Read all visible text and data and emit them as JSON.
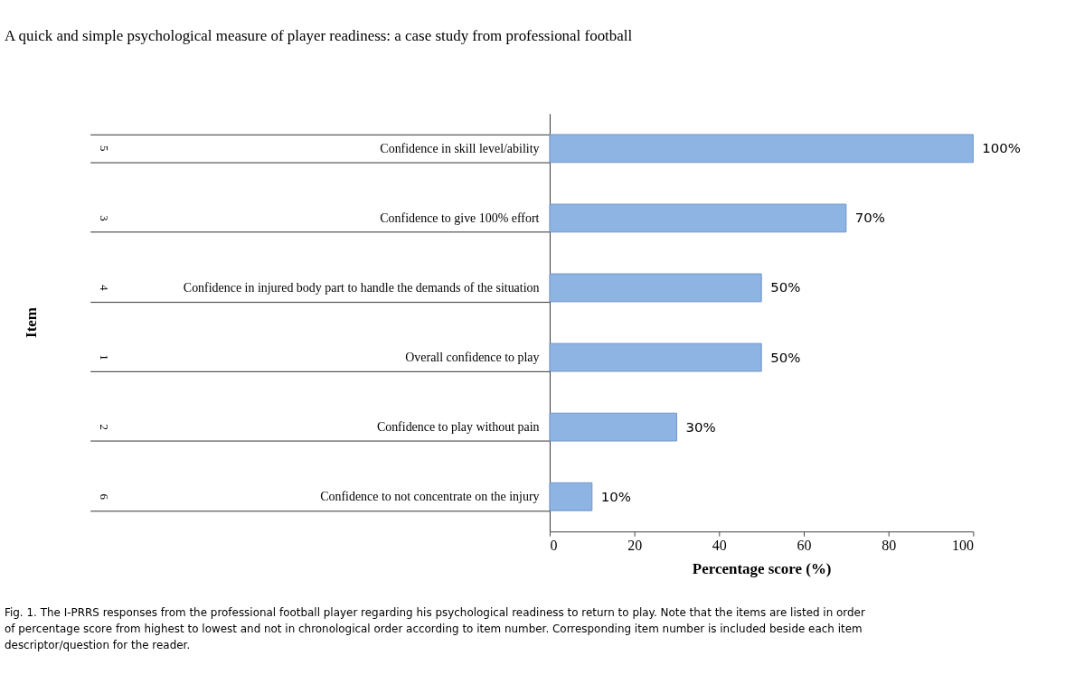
{
  "chart_data": {
    "type": "bar",
    "orientation": "horizontal",
    "title": "A quick and simple psychological measure of player readiness: a case study from professional football",
    "xlabel": "Percentage score (%)",
    "categories": [
      "Confidence in skill level/ability",
      "Confidence to give 100% effort",
      "Confidence in injured body part to handle the demands of the situation",
      "Overall confidence to play",
      "Confidence to play without pain",
      "Confidence to not concentrate on the injury"
    ],
    "values": [
      100,
      70,
      50,
      50,
      30,
      10
    ],
    "value_labels": [
      "100%",
      "70%",
      "50%",
      "50%",
      "30%",
      "10%"
    ],
    "color": "#8db4e2",
    "xlim": [
      0,
      100
    ],
    "xticks": [
      0,
      20,
      40,
      60,
      80,
      100
    ],
    "grid": false,
    "y2_categories": [
      "5",
      "3",
      "4",
      "1",
      "2",
      "6"
    ],
    "annotations": [
      "Item",
      "Fig. 1. The I-PRRS responses from the professional football player regarding his psychological readiness to return to play. Note that the items are listed in order of percentage score from highest to lowest and not in chronological order according to item number. Corresponding item number is included beside each item descriptor/question for the reader."
    ]
  }
}
